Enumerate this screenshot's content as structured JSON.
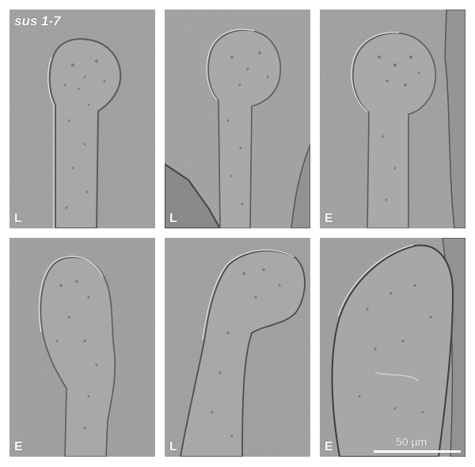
{
  "figure": {
    "title": "sus 1-7",
    "scale_bar_label": "50 µm",
    "background_color": "#9a9a9a"
  },
  "panels": [
    {
      "label": "L"
    },
    {
      "label": "L"
    },
    {
      "label": "E"
    },
    {
      "label": "E"
    },
    {
      "label": "L"
    },
    {
      "label": "E"
    }
  ]
}
